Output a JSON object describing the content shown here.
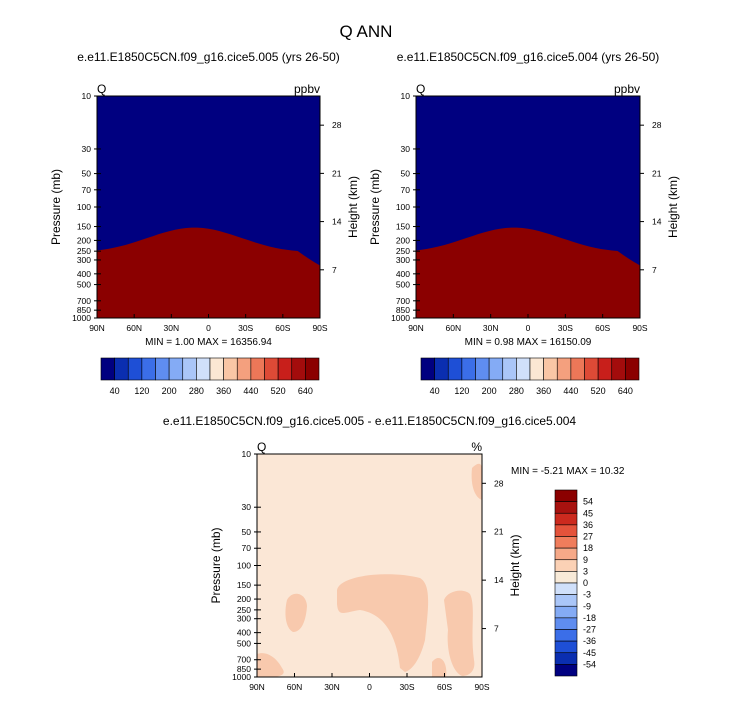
{
  "figure": {
    "title": "Q ANN"
  },
  "colors": {
    "top_scale": [
      "#000080",
      "#0a2eb0",
      "#1e4fd6",
      "#3b6ee8",
      "#5f8df0",
      "#84abf5",
      "#aac6f8",
      "#d0e0fa",
      "#fbe7d3",
      "#f9c6a5",
      "#f4a07e",
      "#ec7758",
      "#de4a36",
      "#c81f1b",
      "#a30c0c",
      "#8b0000"
    ],
    "diff_scale": [
      "#000080",
      "#0a2eb0",
      "#1e4fd6",
      "#3b6ee8",
      "#5f8df0",
      "#84abf5",
      "#aac6f8",
      "#d0e0fa",
      "#f8ead8",
      "#fbd1b5",
      "#f6a988",
      "#f07d5c",
      "#e4533b",
      "#cc2a1e",
      "#a8120f",
      "#8b0000"
    ],
    "diff_background": "#fbe7d6",
    "diff_patch": "#f8c9ad"
  },
  "chart_data": [
    {
      "type": "heatmap",
      "title": "e.e11.E1850C5CN.f09_g16.cice5.005 (yrs 26-50)",
      "variable": "Q",
      "units": "ppbv",
      "ylabel": "Pressure (mb)",
      "ylabel_right": "Height (km)",
      "x_ticks": [
        "90N",
        "60N",
        "30N",
        "0",
        "30S",
        "60S",
        "90S"
      ],
      "y_ticks": [
        "10",
        "30",
        "50",
        "70",
        "100",
        "150",
        "200",
        "250",
        "300",
        "400",
        "500",
        "700",
        "850",
        "1000"
      ],
      "y_ticks_right": [
        "28",
        "21",
        "14",
        "7"
      ],
      "stats": "MIN =   1.00   MAX = 16356.94",
      "colorbar_labels": [
        "40",
        "120",
        "200",
        "280",
        "360",
        "440",
        "520",
        "640"
      ],
      "min": 1.0,
      "max": 16356.94
    },
    {
      "type": "heatmap",
      "title": "e.e11.E1850C5CN.f09_g16.cice5.004 (yrs 26-50)",
      "variable": "Q",
      "units": "ppbv",
      "ylabel": "Pressure (mb)",
      "ylabel_right": "Height (km)",
      "x_ticks": [
        "90N",
        "60N",
        "30N",
        "0",
        "30S",
        "60S",
        "90S"
      ],
      "y_ticks": [
        "10",
        "30",
        "50",
        "70",
        "100",
        "150",
        "200",
        "250",
        "300",
        "400",
        "500",
        "700",
        "850",
        "1000"
      ],
      "y_ticks_right": [
        "28",
        "21",
        "14",
        "7"
      ],
      "stats": "MIN =   0.98   MAX = 16150.09",
      "colorbar_labels": [
        "40",
        "120",
        "200",
        "280",
        "360",
        "440",
        "520",
        "640"
      ],
      "min": 0.98,
      "max": 16150.09
    },
    {
      "type": "heatmap",
      "title": "e.e11.E1850C5CN.f09_g16.cice5.005 - e.e11.E1850C5CN.f09_g16.cice5.004",
      "variable": "Q",
      "units": "%",
      "ylabel": "Pressure (mb)",
      "ylabel_right": "Height (km)",
      "x_ticks": [
        "90N",
        "60N",
        "30N",
        "0",
        "30S",
        "60S",
        "90S"
      ],
      "y_ticks": [
        "10",
        "30",
        "50",
        "70",
        "100",
        "150",
        "200",
        "250",
        "300",
        "400",
        "500",
        "700",
        "850",
        "1000"
      ],
      "y_ticks_right": [
        "28",
        "21",
        "14",
        "7"
      ],
      "stats": "MIN = -5.21   MAX = 10.32",
      "colorbar_labels": [
        "54",
        "45",
        "36",
        "27",
        "18",
        "9",
        "3",
        "0",
        "-3",
        "-9",
        "-18",
        "-27",
        "-36",
        "-45",
        "-54"
      ],
      "min": -5.21,
      "max": 10.32
    }
  ]
}
